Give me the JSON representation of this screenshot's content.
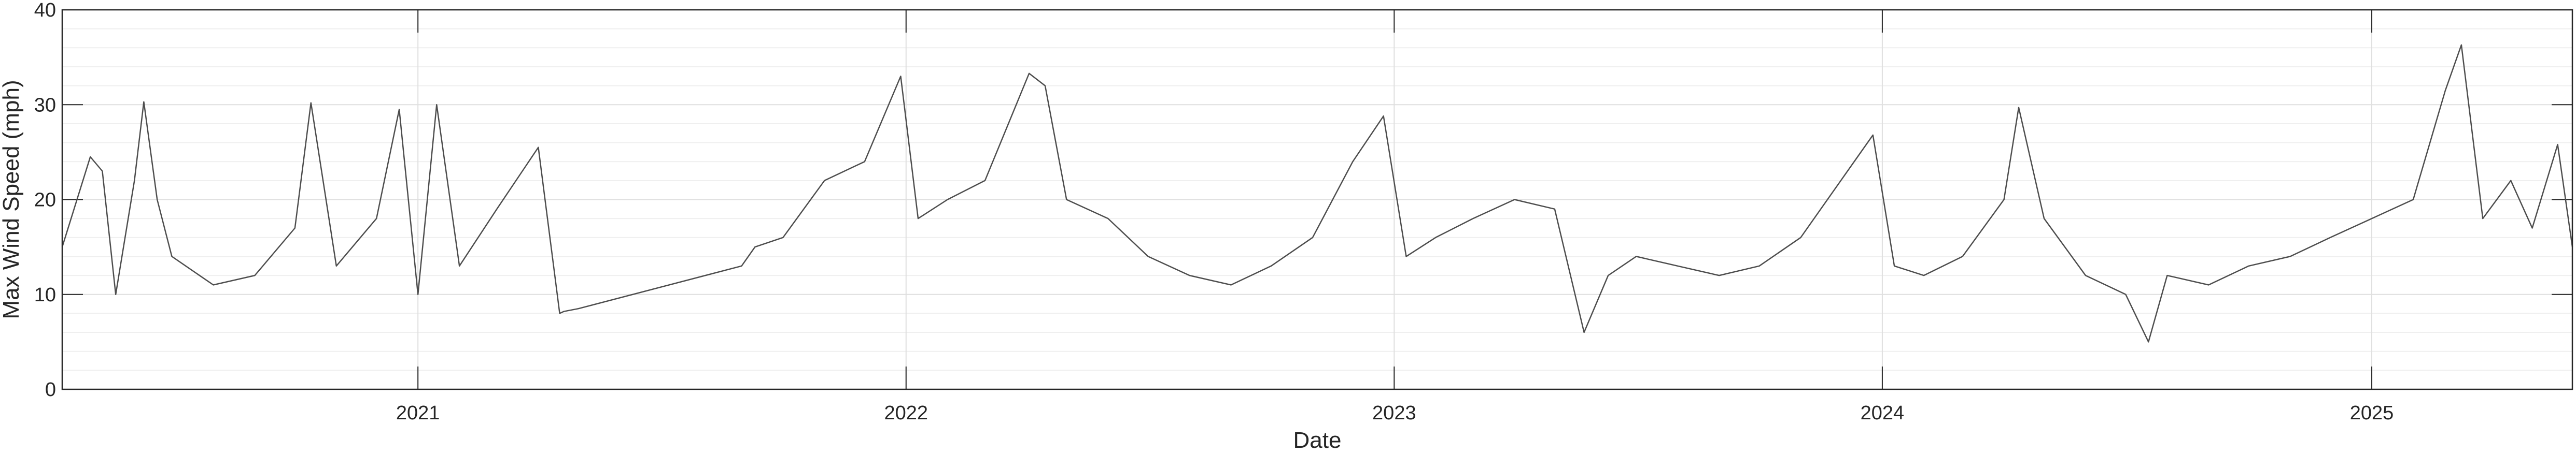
{
  "chart_data": {
    "type": "line",
    "title": "",
    "xlabel": "Date",
    "ylabel": "Max Wind Speed (mph)",
    "ylim": [
      0,
      40
    ],
    "xlim": [
      "2020-04-10",
      "2025-05-31"
    ],
    "x_ticks": [
      "2021",
      "2022",
      "2023",
      "2024",
      "2025"
    ],
    "y_ticks": [
      "0",
      "10",
      "20",
      "30",
      "40"
    ],
    "grid": true,
    "minor_grid": true,
    "colors": {
      "line": "#4d4d4d",
      "axes": "#262626",
      "grid_major": "#dfdfdf",
      "grid_minor": "#efefef",
      "background": "#ffffff"
    },
    "series": [
      {
        "x": [
          "2020-04-10",
          "2020-05-01",
          "2020-05-10",
          "2020-05-20",
          "2020-06-03",
          "2020-06-10",
          "2020-06-20",
          "2020-07-01",
          "2020-08-01",
          "2020-09-01",
          "2020-10-01",
          "2020-10-13",
          "2020-11-01",
          "2020-12-01",
          "2020-12-18",
          "2021-01-01",
          "2021-01-15",
          "2021-02-01",
          "2021-03-01",
          "2021-04-01",
          "2021-04-17",
          "2021-04-20",
          "2021-05-01",
          "2021-08-31",
          "2021-09-10",
          "2021-10-01",
          "2021-11-01",
          "2021-12-01",
          "2021-12-28",
          "2022-01-10",
          "2022-02-01",
          "2022-03-01",
          "2022-04-03",
          "2022-04-15",
          "2022-05-01",
          "2022-06-01",
          "2022-07-01",
          "2022-08-01",
          "2022-09-01",
          "2022-10-01",
          "2022-11-01",
          "2022-12-01",
          "2022-12-24",
          "2023-01-10",
          "2023-02-01",
          "2023-03-01",
          "2023-04-01",
          "2023-05-01",
          "2023-05-23",
          "2023-06-10",
          "2023-07-01",
          "2023-08-01",
          "2023-09-01",
          "2023-10-01",
          "2023-11-01",
          "2023-12-01",
          "2023-12-25",
          "2024-01-10",
          "2024-02-01",
          "2024-03-01",
          "2024-04-01",
          "2024-04-12",
          "2024-05-01",
          "2024-06-01",
          "2024-07-01",
          "2024-07-18",
          "2024-08-01",
          "2024-09-01",
          "2024-10-01",
          "2024-11-01",
          "2024-12-01",
          "2025-01-01",
          "2025-02-01",
          "2025-02-25",
          "2025-03-09",
          "2025-03-25",
          "2025-04-15",
          "2025-05-01",
          "2025-05-20",
          "2025-05-31"
        ],
        "y": [
          15,
          24.5,
          23,
          10,
          22,
          30.3,
          20,
          14,
          11,
          12,
          17,
          30.2,
          13,
          18,
          29.5,
          10,
          30,
          13,
          19,
          25.5,
          8,
          8.2,
          8.5,
          13,
          15,
          16,
          22,
          24,
          33,
          18,
          20,
          22,
          33.3,
          32,
          20,
          18,
          14,
          12,
          11,
          13,
          16,
          24,
          28.8,
          14,
          16,
          18,
          20,
          19,
          6,
          12,
          14,
          13,
          12,
          13,
          16,
          22,
          26.8,
          13,
          12,
          14,
          20,
          29.7,
          18,
          12,
          10,
          5,
          12,
          11,
          13,
          14,
          16,
          18,
          20,
          31.5,
          36.3,
          18,
          22,
          17,
          25.8,
          15
        ]
      }
    ]
  }
}
